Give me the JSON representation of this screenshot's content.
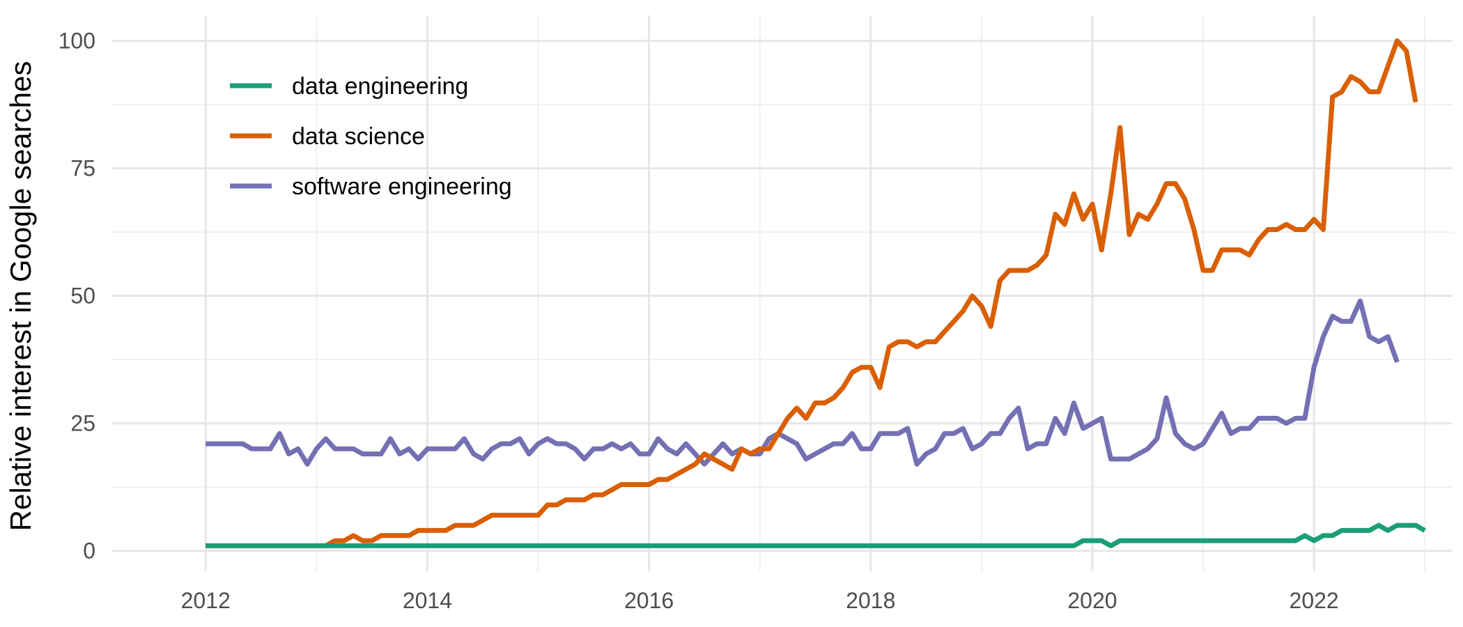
{
  "chart_data": {
    "type": "line",
    "title": "",
    "xlabel": "",
    "ylabel": "Relative interest in Google searches",
    "xlim": [
      2011.15,
      2023.25
    ],
    "ylim": [
      -4,
      105
    ],
    "x_ticks": [
      2012,
      2014,
      2016,
      2018,
      2020,
      2022
    ],
    "x_tick_labels": [
      "2012",
      "2014",
      "2016",
      "2018",
      "2020",
      "2022"
    ],
    "y_ticks": [
      0,
      25,
      50,
      75,
      100
    ],
    "y_tick_labels": [
      "0",
      "25",
      "50",
      "75",
      "100"
    ],
    "grid": true,
    "legend_position": "top-left",
    "x_start_date": "2012-01",
    "x_step": "monthly",
    "series": [
      {
        "name": "data engineering",
        "color": "#1b9e77",
        "values": [
          1,
          1,
          1,
          1,
          1,
          1,
          1,
          1,
          1,
          1,
          1,
          1,
          1,
          1,
          1,
          1,
          1,
          1,
          1,
          1,
          1,
          1,
          1,
          1,
          1,
          1,
          1,
          1,
          1,
          1,
          1,
          1,
          1,
          1,
          1,
          1,
          1,
          1,
          1,
          1,
          1,
          1,
          1,
          1,
          1,
          1,
          1,
          1,
          1,
          1,
          1,
          1,
          1,
          1,
          1,
          1,
          1,
          1,
          1,
          1,
          1,
          1,
          1,
          1,
          1,
          1,
          1,
          1,
          1,
          1,
          1,
          1,
          1,
          1,
          1,
          1,
          1,
          1,
          1,
          1,
          1,
          1,
          1,
          1,
          1,
          1,
          1,
          1,
          1,
          1,
          1,
          1,
          1,
          1,
          1,
          2,
          2,
          2,
          1,
          2,
          2,
          2,
          2,
          2,
          2,
          2,
          2,
          2,
          2,
          2,
          2,
          2,
          2,
          2,
          2,
          2,
          2,
          2,
          2,
          3,
          2,
          3,
          3,
          4,
          4,
          4,
          4,
          5,
          4,
          5,
          5,
          5,
          4
        ]
      },
      {
        "name": "data science",
        "color": "#d95f02",
        "values": [
          1,
          1,
          1,
          1,
          1,
          1,
          1,
          1,
          1,
          1,
          1,
          1,
          1,
          1,
          2,
          2,
          3,
          2,
          2,
          3,
          3,
          3,
          3,
          4,
          4,
          4,
          4,
          5,
          5,
          5,
          6,
          7,
          7,
          7,
          7,
          7,
          7,
          9,
          9,
          10,
          10,
          10,
          11,
          11,
          12,
          13,
          13,
          13,
          13,
          14,
          14,
          15,
          16,
          17,
          19,
          18,
          17,
          16,
          20,
          19,
          20,
          20,
          23,
          26,
          28,
          26,
          29,
          29,
          30,
          32,
          35,
          36,
          36,
          32,
          40,
          41,
          41,
          40,
          41,
          41,
          43,
          45,
          47,
          50,
          48,
          44,
          53,
          55,
          55,
          55,
          56,
          58,
          66,
          64,
          70,
          65,
          68,
          59,
          70,
          83,
          62,
          66,
          65,
          68,
          72,
          72,
          69,
          63,
          55,
          55,
          59,
          59,
          59,
          58,
          61,
          63,
          63,
          64,
          63,
          63,
          65,
          63,
          89,
          90,
          93,
          92,
          90,
          90,
          95,
          100,
          98,
          88
        ]
      },
      {
        "name": "software engineering",
        "color": "#7570b3",
        "values": [
          21,
          21,
          21,
          21,
          21,
          20,
          20,
          20,
          23,
          19,
          20,
          17,
          20,
          22,
          20,
          20,
          20,
          19,
          19,
          19,
          22,
          19,
          20,
          18,
          20,
          20,
          20,
          20,
          22,
          19,
          18,
          20,
          21,
          21,
          22,
          19,
          21,
          22,
          21,
          21,
          20,
          18,
          20,
          20,
          21,
          20,
          21,
          19,
          19,
          22,
          20,
          19,
          21,
          19,
          17,
          19,
          21,
          19,
          20,
          19,
          19,
          22,
          23,
          22,
          21,
          18,
          19,
          20,
          21,
          21,
          23,
          20,
          20,
          23,
          23,
          23,
          24,
          17,
          19,
          20,
          23,
          23,
          24,
          20,
          21,
          23,
          23,
          26,
          28,
          20,
          21,
          21,
          26,
          23,
          29,
          24,
          25,
          26,
          18,
          18,
          18,
          19,
          20,
          22,
          30,
          23,
          21,
          20,
          21,
          24,
          27,
          23,
          24,
          24,
          26,
          26,
          26,
          25,
          26,
          26,
          36,
          42,
          46,
          45,
          45,
          49,
          42,
          41,
          42,
          37
        ]
      }
    ]
  }
}
